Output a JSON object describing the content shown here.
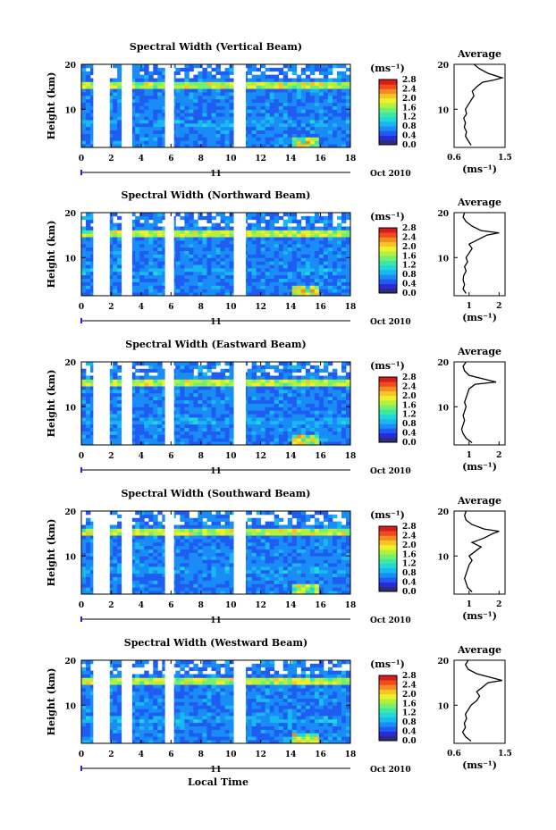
{
  "figure": {
    "xlabel": "Local Time",
    "date_label": "Oct 2010",
    "day_label": "11",
    "unit_label": "(ms⁻¹)",
    "avg_title": "Average",
    "avg_xlabel": "(ms⁻¹)",
    "colors": [
      "#2c2c7a",
      "#2a2ad8",
      "#1f5cf2",
      "#1a8cf5",
      "#19b8f0",
      "#20d8d8",
      "#3ee8a4",
      "#74f06e",
      "#b4f03c",
      "#eef02c",
      "#f7c426",
      "#f48a22",
      "#ee4c1e",
      "#d81c1c"
    ]
  },
  "chart_data": [
    {
      "type": "heatmap",
      "title": "Spectral Width (Vertical Beam)",
      "ylabel": "Height (km)",
      "xlabel": "Local Time",
      "x_ticks": [
        "0",
        "2",
        "4",
        "6",
        "8",
        "10",
        "12",
        "14",
        "16",
        "18"
      ],
      "y_ticks": [
        "10",
        "20"
      ],
      "xlim": [
        0,
        18
      ],
      "ylim": [
        1.5,
        20
      ],
      "colorbar": {
        "min": 0.0,
        "max": 2.8,
        "ticks": [
          "0.0",
          "0.4",
          "0.8",
          "1.2",
          "1.6",
          "2.0",
          "2.4",
          "2.8"
        ]
      },
      "data_gaps_hours": [
        [
          0.8,
          1.9
        ],
        [
          2.7,
          3.4
        ],
        [
          5.6,
          6.2
        ],
        [
          10.2,
          11.0
        ]
      ],
      "average_profile": {
        "xlim": [
          0.6,
          1.5
        ],
        "x_ticks": [
          "0.6",
          "1.5"
        ],
        "x": [
          0.9,
          0.85,
          0.8,
          0.82,
          0.78,
          0.8,
          0.77,
          0.82,
          0.8,
          0.85,
          0.9,
          0.95,
          0.92,
          1.0,
          1.05,
          1.1,
          1.3,
          1.45,
          1.2,
          1.05,
          1.0,
          0.95
        ],
        "height_km": [
          2,
          3,
          4,
          5,
          6,
          7,
          8,
          9,
          10,
          11,
          12,
          13,
          14,
          15,
          15.5,
          16,
          16.5,
          17,
          18,
          19,
          19.5,
          20
        ]
      }
    },
    {
      "type": "heatmap",
      "title": "Spectral Width (Northward Beam)",
      "ylabel": "Height (km)",
      "xlabel": "Local Time",
      "x_ticks": [
        "0",
        "2",
        "4",
        "6",
        "8",
        "10",
        "12",
        "14",
        "16",
        "18"
      ],
      "y_ticks": [
        "10",
        "20"
      ],
      "xlim": [
        0,
        18
      ],
      "ylim": [
        1.5,
        20
      ],
      "colorbar": {
        "min": 0.0,
        "max": 2.8,
        "ticks": [
          "0.0",
          "0.4",
          "0.8",
          "1.2",
          "1.6",
          "2.0",
          "2.4",
          "2.8"
        ]
      },
      "data_gaps_hours": [
        [
          0.8,
          1.9
        ],
        [
          2.7,
          3.4
        ],
        [
          5.6,
          6.2
        ],
        [
          10.2,
          11.0
        ]
      ],
      "average_profile": {
        "xlim": [
          0.5,
          2.2
        ],
        "x_ticks": [
          "1",
          "2"
        ],
        "x": [
          0.9,
          0.8,
          0.85,
          0.8,
          0.82,
          0.9,
          0.85,
          0.95,
          0.9,
          1.0,
          1.1,
          1.0,
          1.3,
          1.6,
          2.0,
          1.4,
          1.1,
          0.9,
          0.8,
          0.85
        ],
        "height_km": [
          2,
          3,
          4,
          5,
          6,
          7,
          8,
          9,
          10,
          11,
          12,
          13,
          14,
          15,
          15.5,
          16,
          17,
          18,
          19,
          20
        ]
      }
    },
    {
      "type": "heatmap",
      "title": "Spectral Width (Eastward Beam)",
      "ylabel": "Height (km)",
      "xlabel": "Local Time",
      "x_ticks": [
        "0",
        "2",
        "4",
        "6",
        "8",
        "10",
        "12",
        "14",
        "16",
        "18"
      ],
      "y_ticks": [
        "10",
        "20"
      ],
      "xlim": [
        0,
        18
      ],
      "ylim": [
        1.5,
        20
      ],
      "colorbar": {
        "min": 0.0,
        "max": 2.8,
        "ticks": [
          "0.0",
          "0.4",
          "0.8",
          "1.2",
          "1.6",
          "2.0",
          "2.4",
          "2.8"
        ]
      },
      "data_gaps_hours": [
        [
          0.8,
          1.9
        ],
        [
          2.7,
          3.4
        ],
        [
          5.6,
          6.2
        ],
        [
          10.2,
          11.0
        ]
      ],
      "average_profile": {
        "xlim": [
          0.5,
          2.2
        ],
        "x_ticks": [
          "1",
          "2"
        ],
        "x": [
          1.1,
          0.9,
          0.8,
          0.75,
          0.8,
          0.85,
          0.8,
          0.85,
          0.9,
          0.85,
          0.9,
          0.95,
          1.0,
          1.2,
          1.9,
          1.6,
          1.0,
          0.85,
          0.8,
          0.9
        ],
        "height_km": [
          2,
          3,
          4,
          5,
          6,
          7,
          8,
          9,
          10,
          11,
          12,
          13,
          14,
          15,
          15.5,
          16,
          17,
          18,
          19,
          20
        ]
      }
    },
    {
      "type": "heatmap",
      "title": "Spectral Width (Southward Beam)",
      "ylabel": "Height (km)",
      "xlabel": "Local Time",
      "x_ticks": [
        "0",
        "2",
        "4",
        "6",
        "8",
        "10",
        "12",
        "14",
        "16",
        "18"
      ],
      "y_ticks": [
        "10",
        "20"
      ],
      "xlim": [
        0,
        18
      ],
      "ylim": [
        1.5,
        20
      ],
      "colorbar": {
        "min": 0.0,
        "max": 2.8,
        "ticks": [
          "0.0",
          "0.4",
          "0.8",
          "1.2",
          "1.6",
          "2.0",
          "2.4",
          "2.8"
        ]
      },
      "data_gaps_hours": [
        [
          0.8,
          1.9
        ],
        [
          2.7,
          3.4
        ],
        [
          5.6,
          6.2
        ],
        [
          10.2,
          11.0
        ]
      ],
      "average_profile": {
        "xlim": [
          0.5,
          2.2
        ],
        "x_ticks": [
          "1",
          "2"
        ],
        "x": [
          1.1,
          0.95,
          0.9,
          0.85,
          0.9,
          0.95,
          1.0,
          1.1,
          1.0,
          1.2,
          1.4,
          1.1,
          1.5,
          1.8,
          2.0,
          1.5,
          1.1,
          0.9,
          0.85,
          0.9
        ],
        "height_km": [
          2,
          3,
          4,
          5,
          6,
          7,
          8,
          9,
          10,
          11,
          12,
          13,
          14,
          15,
          15.5,
          16,
          17,
          18,
          19,
          20
        ]
      }
    },
    {
      "type": "heatmap",
      "title": "Spectral Width (Westward Beam)",
      "ylabel": "Height (km)",
      "xlabel": "Local Time",
      "x_ticks": [
        "0",
        "2",
        "4",
        "6",
        "8",
        "10",
        "12",
        "14",
        "16",
        "18"
      ],
      "y_ticks": [
        "10",
        "20"
      ],
      "xlim": [
        0,
        18
      ],
      "ylim": [
        1.5,
        20
      ],
      "colorbar": {
        "min": 0.0,
        "max": 2.8,
        "ticks": [
          "0.0",
          "0.4",
          "0.8",
          "1.2",
          "1.6",
          "2.0",
          "2.4",
          "2.8"
        ]
      },
      "data_gaps_hours": [
        [
          0.8,
          1.9
        ],
        [
          2.7,
          3.4
        ],
        [
          5.6,
          6.2
        ],
        [
          10.2,
          11.0
        ]
      ],
      "average_profile": {
        "xlim": [
          0.6,
          1.5
        ],
        "x_ticks": [
          "0.6",
          "1.5"
        ],
        "x": [
          0.9,
          0.8,
          0.75,
          0.8,
          0.78,
          0.82,
          0.8,
          0.85,
          0.9,
          1.0,
          1.05,
          1.0,
          1.1,
          1.2,
          1.45,
          1.3,
          1.0,
          0.85,
          0.8,
          0.85
        ],
        "height_km": [
          2,
          3,
          4,
          5,
          6,
          7,
          8,
          9,
          10,
          11,
          12,
          13,
          14,
          15,
          15.5,
          16,
          17,
          18,
          19,
          20
        ]
      }
    }
  ]
}
